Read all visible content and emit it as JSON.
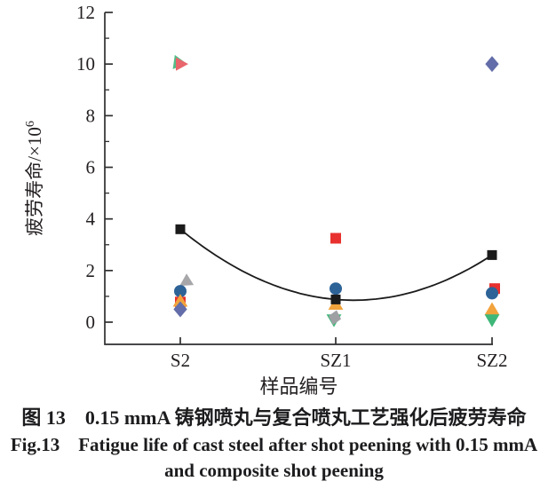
{
  "figure": {
    "caption_cn": "图 13　0.15 mmA 铸钢喷丸与复合喷丸工艺强化后疲劳寿命",
    "caption_en_line1": "Fig.13　Fatigue life of cast steel after shot peening with 0.15 mmA",
    "caption_en_line2": "and composite shot peening"
  },
  "chart_data": {
    "type": "scatter",
    "title": "",
    "xlabel": "样品编号",
    "ylabel": "疲劳寿命/×10",
    "ylabel_superscript": "6",
    "categories": [
      "S2",
      "SZ1",
      "SZ2"
    ],
    "ylim": [
      -0.9,
      12
    ],
    "yticks_major": [
      0,
      2,
      4,
      6,
      8,
      10,
      12
    ],
    "yticks_minor": [
      1,
      3,
      5,
      7,
      9,
      11
    ],
    "grid": false,
    "legend": "none",
    "axis_color": "#2f2f30",
    "text_color": "#231f20",
    "curve_color": "#1b1b1b",
    "series": [
      {
        "name": "gray-triangle-left",
        "marker": "triangle-left",
        "color": "#a7a7aa",
        "size": 8,
        "points": [
          {
            "category": "S2",
            "value": 1.55,
            "dx": 6,
            "rotate": -32
          }
        ]
      },
      {
        "name": "green-triangle-right",
        "marker": "triangle-right",
        "color": "#52bd88",
        "size": 8.5,
        "points": [
          {
            "category": "S2",
            "value": 10.05,
            "dx": -1,
            "rotate": 8
          }
        ]
      },
      {
        "name": "salmon-triangle-right",
        "marker": "triangle-right",
        "color": "#e8666c",
        "size": 8,
        "points": [
          {
            "category": "S2",
            "value": 10.0,
            "dx": 1
          }
        ]
      },
      {
        "name": "red-square",
        "marker": "square",
        "color": "#e8312e",
        "size": 6,
        "points": [
          {
            "category": "S2",
            "value": 0.78
          },
          {
            "category": "SZ1",
            "value": 3.25
          },
          {
            "category": "SZ2",
            "value": 1.3,
            "dx": 3
          }
        ]
      },
      {
        "name": "blue-circle",
        "marker": "circle",
        "color": "#2d6397",
        "size": 7,
        "points": [
          {
            "category": "S2",
            "value": 1.2
          },
          {
            "category": "SZ1",
            "value": 1.3
          },
          {
            "category": "SZ2",
            "value": 1.12
          }
        ]
      },
      {
        "name": "orange-triangle-up",
        "marker": "triangle-up",
        "color": "#f2a33c",
        "size": 8,
        "points": [
          {
            "category": "S2",
            "value": 0.82
          },
          {
            "category": "SZ1",
            "value": 0.7
          },
          {
            "category": "SZ2",
            "value": 0.5
          }
        ]
      },
      {
        "name": "green-triangle-down",
        "marker": "triangle-down",
        "color": "#3eb778",
        "size": 8,
        "points": [
          {
            "category": "SZ1",
            "value": 0.08,
            "dx": -2
          },
          {
            "category": "SZ2",
            "value": 0.08
          }
        ]
      },
      {
        "name": "gray-diamond",
        "marker": "diamond",
        "color": "#9fa0a4",
        "size": 8.5,
        "points": [
          {
            "category": "SZ1",
            "value": 0.18,
            "dx": -1,
            "rotate": 14
          }
        ]
      },
      {
        "name": "purple-diamond",
        "marker": "diamond",
        "color": "#636da9",
        "size": 9,
        "points": [
          {
            "category": "S2",
            "value": 0.5
          },
          {
            "category": "SZ2",
            "value": 10.0
          }
        ]
      },
      {
        "name": "fit-black-square",
        "marker": "square",
        "color": "#1b1b1b",
        "size": 5.5,
        "curve": true,
        "points": [
          {
            "category": "S2",
            "value": 3.6
          },
          {
            "category": "SZ1",
            "value": 0.88
          },
          {
            "category": "SZ2",
            "value": 2.6
          }
        ]
      }
    ]
  }
}
